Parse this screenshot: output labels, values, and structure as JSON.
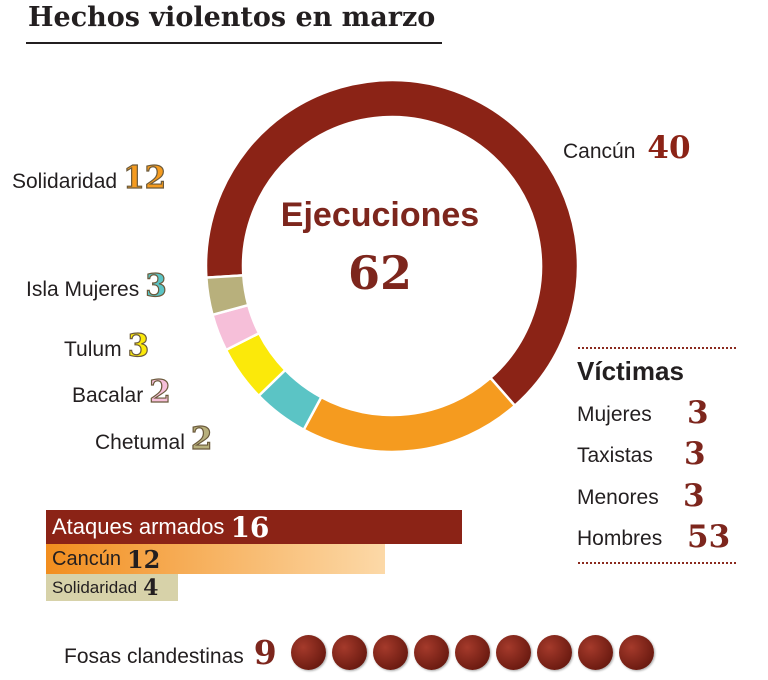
{
  "title": "Hechos violentos en marzo",
  "chart_data": [
    {
      "type": "pie",
      "center_label": "Ejecuciones",
      "center_value": "62",
      "slices": [
        {
          "name": "Cancún",
          "value": 40,
          "color": "#8b2316"
        },
        {
          "name": "Solidaridad",
          "value": 12,
          "color": "#f59b1f"
        },
        {
          "name": "Isla Mujeres",
          "value": 3,
          "color": "#5bc4c5"
        },
        {
          "name": "Tulum",
          "value": 3,
          "color": "#fbe90a"
        },
        {
          "name": "Bacalar",
          "value": 2,
          "color": "#f6bfd9"
        },
        {
          "name": "Chetumal",
          "value": 2,
          "color": "#b8b07c"
        }
      ]
    },
    {
      "type": "bar",
      "categories": [
        "Ataques armados",
        "Cancún",
        "Solidaridad"
      ],
      "values": [
        16,
        12,
        4
      ],
      "colors": [
        "#8b2316",
        "#f59b1f",
        "#d7d2a9"
      ]
    }
  ],
  "victimas": {
    "title": "Víctimas",
    "rows": [
      {
        "label": "Mujeres",
        "value": "3"
      },
      {
        "label": "Taxistas",
        "value": "3"
      },
      {
        "label": "Menores",
        "value": "3"
      },
      {
        "label": "Hombres",
        "value": "53"
      }
    ]
  },
  "fosas": {
    "label": "Fosas clandestinas",
    "value": 9
  }
}
